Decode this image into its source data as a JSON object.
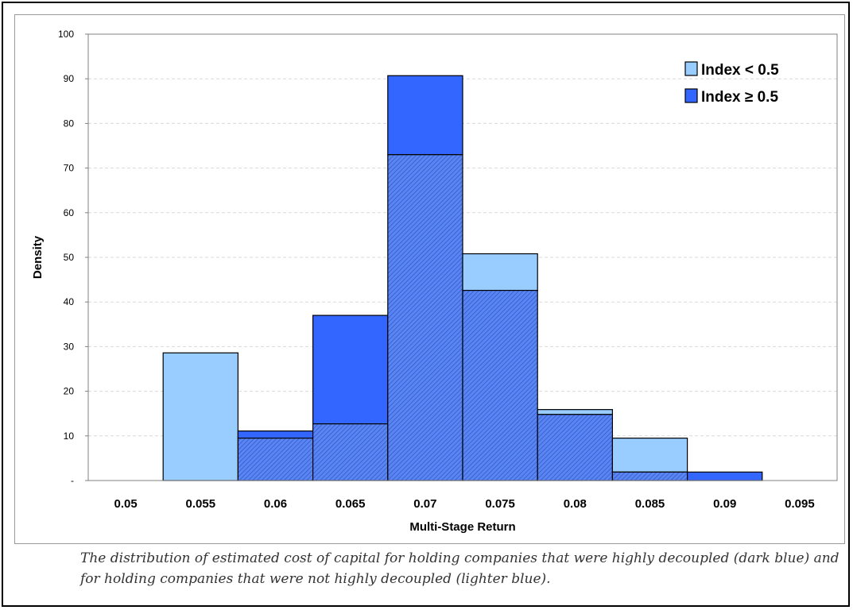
{
  "chart_data": {
    "type": "bar",
    "title": "",
    "xlabel": "Multi-Stage Return",
    "ylabel": "Density",
    "x_ticks": [
      "0.05",
      "0.055",
      "0.06",
      "0.065",
      "0.07",
      "0.075",
      "0.08",
      "0.085",
      "0.09",
      "0.095"
    ],
    "y_ticks": [
      "-",
      "10",
      "20",
      "30",
      "40",
      "50",
      "60",
      "70",
      "80",
      "90",
      "100"
    ],
    "ylim": [
      0,
      100
    ],
    "grid": true,
    "legend_position": "top-right",
    "bin_centers": [
      "0.055",
      "0.06",
      "0.065",
      "0.07",
      "0.075",
      "0.08",
      "0.085",
      "0.09"
    ],
    "series": [
      {
        "name": "Index < 0.5",
        "color": "#99ccff",
        "values": [
          28.6,
          9.5,
          12.7,
          73.0,
          50.8,
          15.9,
          9.5,
          0
        ]
      },
      {
        "name": "Index ≥ 0.5",
        "color": "#3366ff",
        "values": [
          0,
          11.1,
          37.0,
          90.7,
          42.6,
          14.8,
          1.9,
          1.9
        ]
      }
    ]
  },
  "caption": "The distribution of estimated cost of capital for holding companies that were highly decoupled (dark blue) and for holding companies that were not highly decoupled (lighter blue)."
}
